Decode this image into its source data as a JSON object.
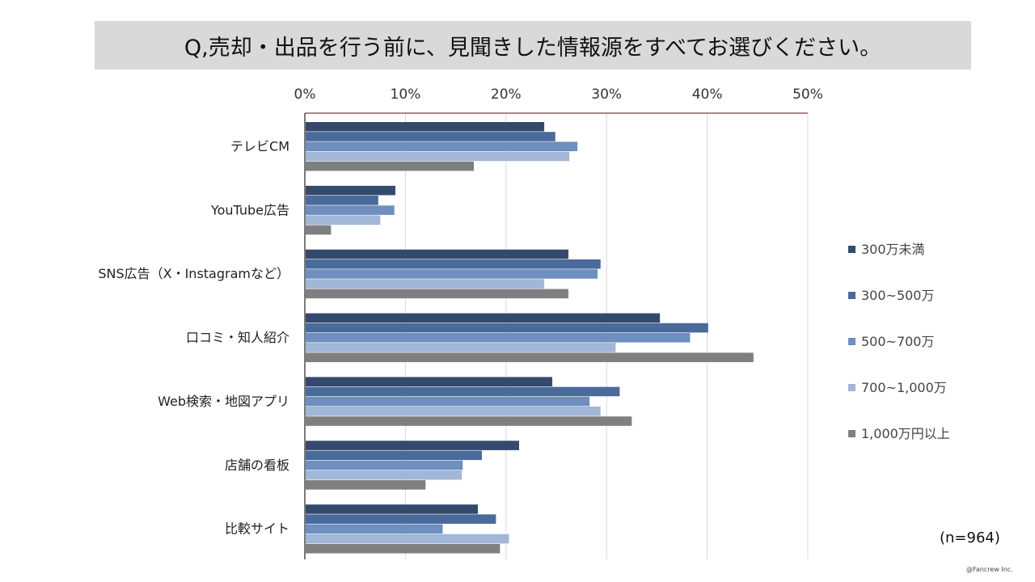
{
  "title": "Q,売却・出品を行う前に、見聞きした情報源をすべてお選びください。",
  "sample_note": "(n=964)",
  "copyright": "@Fancrew Inc.",
  "colors": {
    "series": [
      "#344a6c",
      "#4a6a9b",
      "#6e8fbf",
      "#a2b6d6",
      "#7f7f7f"
    ],
    "axis": "#7a3a3a",
    "grid": "#d9d9d9"
  },
  "chart_data": {
    "type": "bar",
    "orientation": "horizontal",
    "title": "Q,売却・出品を行う前に、見聞きした情報源をすべてお選びください。",
    "xlabel": "",
    "ylabel": "",
    "xlim": [
      0,
      50
    ],
    "ticks": [
      0,
      10,
      20,
      30,
      40,
      50
    ],
    "tick_labels": [
      "0%",
      "10%",
      "20%",
      "30%",
      "40%",
      "50%"
    ],
    "grid": true,
    "legend_position": "right",
    "categories": [
      "テレビCM",
      "YouTube広告",
      "SNS広告（X・Instagramなど）",
      "口コミ・知人紹介",
      "Web検索・地図アプリ",
      "店舗の看板",
      "比較サイト"
    ],
    "series": [
      {
        "name": "300万未満",
        "values": [
          23.8,
          9.0,
          26.2,
          35.3,
          24.6,
          21.3,
          17.2
        ]
      },
      {
        "name": "300~500万",
        "values": [
          24.9,
          7.3,
          29.4,
          40.1,
          31.3,
          17.6,
          19.0
        ]
      },
      {
        "name": "500~700万",
        "values": [
          27.1,
          8.9,
          29.1,
          38.3,
          28.3,
          15.7,
          13.7
        ]
      },
      {
        "name": "700~1,000万",
        "values": [
          26.3,
          7.5,
          23.8,
          30.9,
          29.4,
          15.6,
          20.3
        ]
      },
      {
        "name": "1,000万円以上",
        "values": [
          16.8,
          2.6,
          26.2,
          44.6,
          32.5,
          12.0,
          19.4
        ]
      }
    ]
  }
}
